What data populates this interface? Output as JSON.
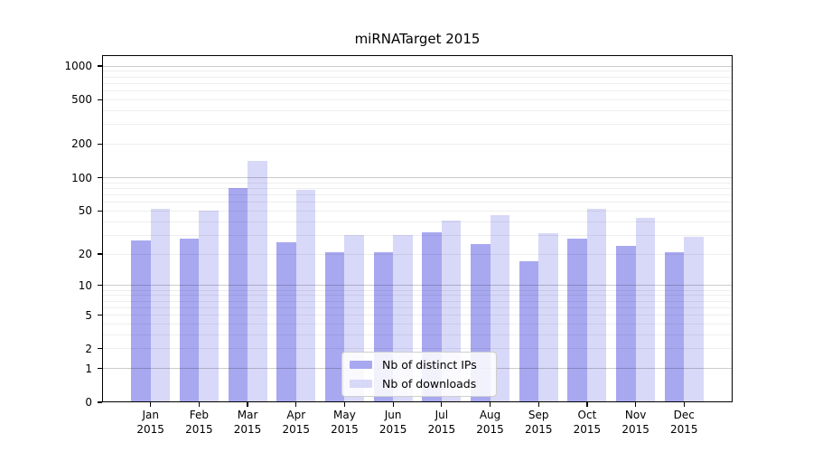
{
  "chart_data": {
    "type": "bar",
    "grouping": "grouped-pairs",
    "title": "miRNATarget 2015",
    "categories": [
      {
        "month": "Jan",
        "year": "2015"
      },
      {
        "month": "Feb",
        "year": "2015"
      },
      {
        "month": "Mar",
        "year": "2015"
      },
      {
        "month": "Apr",
        "year": "2015"
      },
      {
        "month": "May",
        "year": "2015"
      },
      {
        "month": "Jun",
        "year": "2015"
      },
      {
        "month": "Jul",
        "year": "2015"
      },
      {
        "month": "Aug",
        "year": "2015"
      },
      {
        "month": "Sep",
        "year": "2015"
      },
      {
        "month": "Oct",
        "year": "2015"
      },
      {
        "month": "Nov",
        "year": "2015"
      },
      {
        "month": "Dec",
        "year": "2015"
      }
    ],
    "series": [
      {
        "name": "Nb of distinct IPs",
        "color": "#a8a8f0",
        "values": [
          27,
          28,
          81,
          26,
          21,
          21,
          32,
          25,
          17,
          28,
          24,
          21
        ]
      },
      {
        "name": "Nb of downloads",
        "color": "#d8d8f8",
        "values": [
          52,
          50,
          142,
          77,
          30,
          30,
          41,
          46,
          31,
          52,
          43,
          29
        ]
      }
    ],
    "yscale": "log10(value+1)",
    "ylim": [
      0,
      1250
    ],
    "yticks": [
      0,
      1,
      2,
      5,
      10,
      20,
      50,
      100,
      200,
      500,
      1000
    ],
    "grid": {
      "orientation": "horizontal",
      "major_at": [
        1,
        10,
        100,
        1000
      ],
      "minor": "2-9 per decade",
      "drawn_over_bars": true
    },
    "legend": {
      "position": "inside-lower-center"
    },
    "xlabel": "",
    "ylabel": ""
  }
}
